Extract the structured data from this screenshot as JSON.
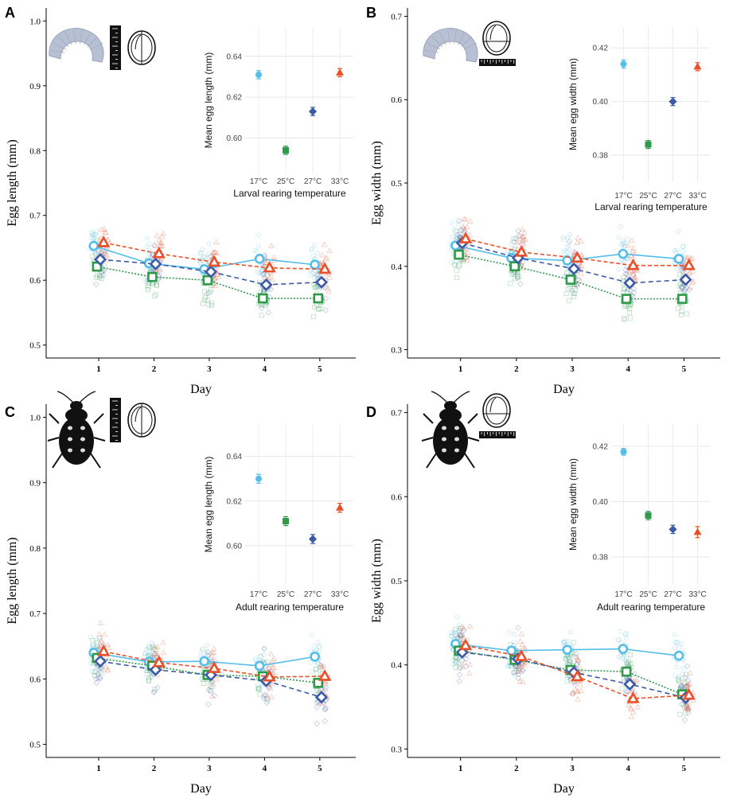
{
  "figure": {
    "title": "",
    "series_styles": [
      {
        "temperature": "17°C",
        "color": "#55bde9",
        "shape": "circle",
        "dash": "",
        "inset_shape": "circle"
      },
      {
        "temperature": "25°C",
        "color": "#2e9a4a",
        "shape": "square",
        "dash": "2,2",
        "inset_shape": "square"
      },
      {
        "temperature": "27°C",
        "color": "#3d5aa6",
        "shape": "diamond",
        "dash": "6,4",
        "inset_shape": "diamond"
      },
      {
        "temperature": "33°C",
        "color": "#e8512a",
        "shape": "triangle",
        "dash": "5,3",
        "inset_shape": "triangle"
      }
    ]
  },
  "chart_data": [
    {
      "panel": "A",
      "type": "line",
      "icon": "larva",
      "measure": "length",
      "xlabel": "Day",
      "ylabel": "Egg length (mm)",
      "x": [
        1,
        2,
        3,
        4,
        5
      ],
      "ylim": [
        0.48,
        1.02
      ],
      "yticks": [
        "0.5",
        "0.6",
        "0.7",
        "0.8",
        "0.9",
        "1.0"
      ],
      "series": [
        {
          "values": [
            0.653,
            0.626,
            0.617,
            0.633,
            0.624
          ]
        },
        {
          "values": [
            0.621,
            0.605,
            0.6,
            0.572,
            0.572
          ]
        },
        {
          "values": [
            0.632,
            0.625,
            0.613,
            0.593,
            0.597
          ]
        },
        {
          "values": [
            0.658,
            0.641,
            0.628,
            0.619,
            0.617
          ]
        }
      ],
      "inset": {
        "ylabel": "Mean egg length (mm)",
        "xlabel": "Larval rearing temperature",
        "categories": [
          "17°C",
          "25°C",
          "27°C",
          "33°C"
        ],
        "ylim": [
          0.585,
          0.652
        ],
        "yticks": [
          "0.60",
          "0.62",
          "0.64"
        ],
        "values": [
          0.631,
          0.594,
          0.613,
          0.632
        ],
        "errors": [
          0.002,
          0.002,
          0.002,
          0.002
        ]
      }
    },
    {
      "panel": "B",
      "type": "line",
      "icon": "larva",
      "measure": "width",
      "xlabel": "Day",
      "ylabel": "Egg width (mm)",
      "x": [
        1,
        2,
        3,
        4,
        5
      ],
      "ylim": [
        0.29,
        0.71
      ],
      "yticks": [
        "0.3",
        "0.4",
        "0.5",
        "0.6",
        "0.7"
      ],
      "series": [
        {
          "values": [
            0.425,
            0.41,
            0.407,
            0.415,
            0.409
          ]
        },
        {
          "values": [
            0.414,
            0.4,
            0.384,
            0.361,
            0.361
          ]
        },
        {
          "values": [
            0.428,
            0.41,
            0.397,
            0.38,
            0.384
          ]
        },
        {
          "values": [
            0.433,
            0.417,
            0.41,
            0.401,
            0.401
          ]
        }
      ],
      "inset": {
        "ylabel": "Mean egg width (mm)",
        "xlabel": "Larval rearing temperature",
        "categories": [
          "17°C",
          "25°C",
          "27°C",
          "33°C"
        ],
        "ylim": [
          0.372,
          0.426
        ],
        "yticks": [
          "0.38",
          "0.40",
          "0.42"
        ],
        "values": [
          0.414,
          0.384,
          0.4,
          0.413
        ],
        "errors": [
          0.0015,
          0.0015,
          0.0015,
          0.0015
        ]
      }
    },
    {
      "panel": "C",
      "type": "line",
      "icon": "beetle",
      "measure": "length",
      "xlabel": "Day",
      "ylabel": "Egg length (mm)",
      "x": [
        1,
        2,
        3,
        4,
        5
      ],
      "ylim": [
        0.48,
        1.02
      ],
      "yticks": [
        "0.5",
        "0.6",
        "0.7",
        "0.8",
        "0.9",
        "1.0"
      ],
      "series": [
        {
          "values": [
            0.64,
            0.626,
            0.627,
            0.62,
            0.634
          ]
        },
        {
          "values": [
            0.632,
            0.62,
            0.606,
            0.604,
            0.594
          ]
        },
        {
          "values": [
            0.627,
            0.614,
            0.606,
            0.597,
            0.572
          ]
        },
        {
          "values": [
            0.642,
            0.625,
            0.616,
            0.603,
            0.604
          ]
        }
      ],
      "inset": {
        "ylabel": "Mean egg length (mm)",
        "xlabel": "Adult rearing temperature",
        "categories": [
          "17°C",
          "25°C",
          "27°C",
          "33°C"
        ],
        "ylim": [
          0.585,
          0.652
        ],
        "yticks": [
          "0.60",
          "0.62",
          "0.64"
        ],
        "values": [
          0.63,
          0.611,
          0.603,
          0.617
        ],
        "errors": [
          0.002,
          0.002,
          0.002,
          0.002
        ]
      }
    },
    {
      "panel": "D",
      "type": "line",
      "icon": "beetle",
      "measure": "width",
      "xlabel": "Day",
      "ylabel": "Egg width (mm)",
      "x": [
        1,
        2,
        3,
        4,
        5
      ],
      "ylim": [
        0.29,
        0.71
      ],
      "yticks": [
        "0.3",
        "0.4",
        "0.5",
        "0.6",
        "0.7"
      ],
      "series": [
        {
          "values": [
            0.425,
            0.417,
            0.418,
            0.419,
            0.411
          ]
        },
        {
          "values": [
            0.417,
            0.406,
            0.394,
            0.392,
            0.365
          ]
        },
        {
          "values": [
            0.415,
            0.407,
            0.391,
            0.377,
            0.361
          ]
        },
        {
          "values": [
            0.423,
            0.41,
            0.386,
            0.36,
            0.364
          ]
        }
      ],
      "inset": {
        "ylabel": "Mean egg width (mm)",
        "xlabel": "Adult rearing temperature",
        "categories": [
          "17°C",
          "25°C",
          "27°C",
          "33°C"
        ],
        "ylim": [
          0.372,
          0.426
        ],
        "yticks": [
          "0.38",
          "0.40",
          "0.42"
        ],
        "values": [
          0.418,
          0.395,
          0.39,
          0.389
        ],
        "errors": [
          0.0012,
          0.0015,
          0.0015,
          0.002
        ]
      }
    }
  ]
}
